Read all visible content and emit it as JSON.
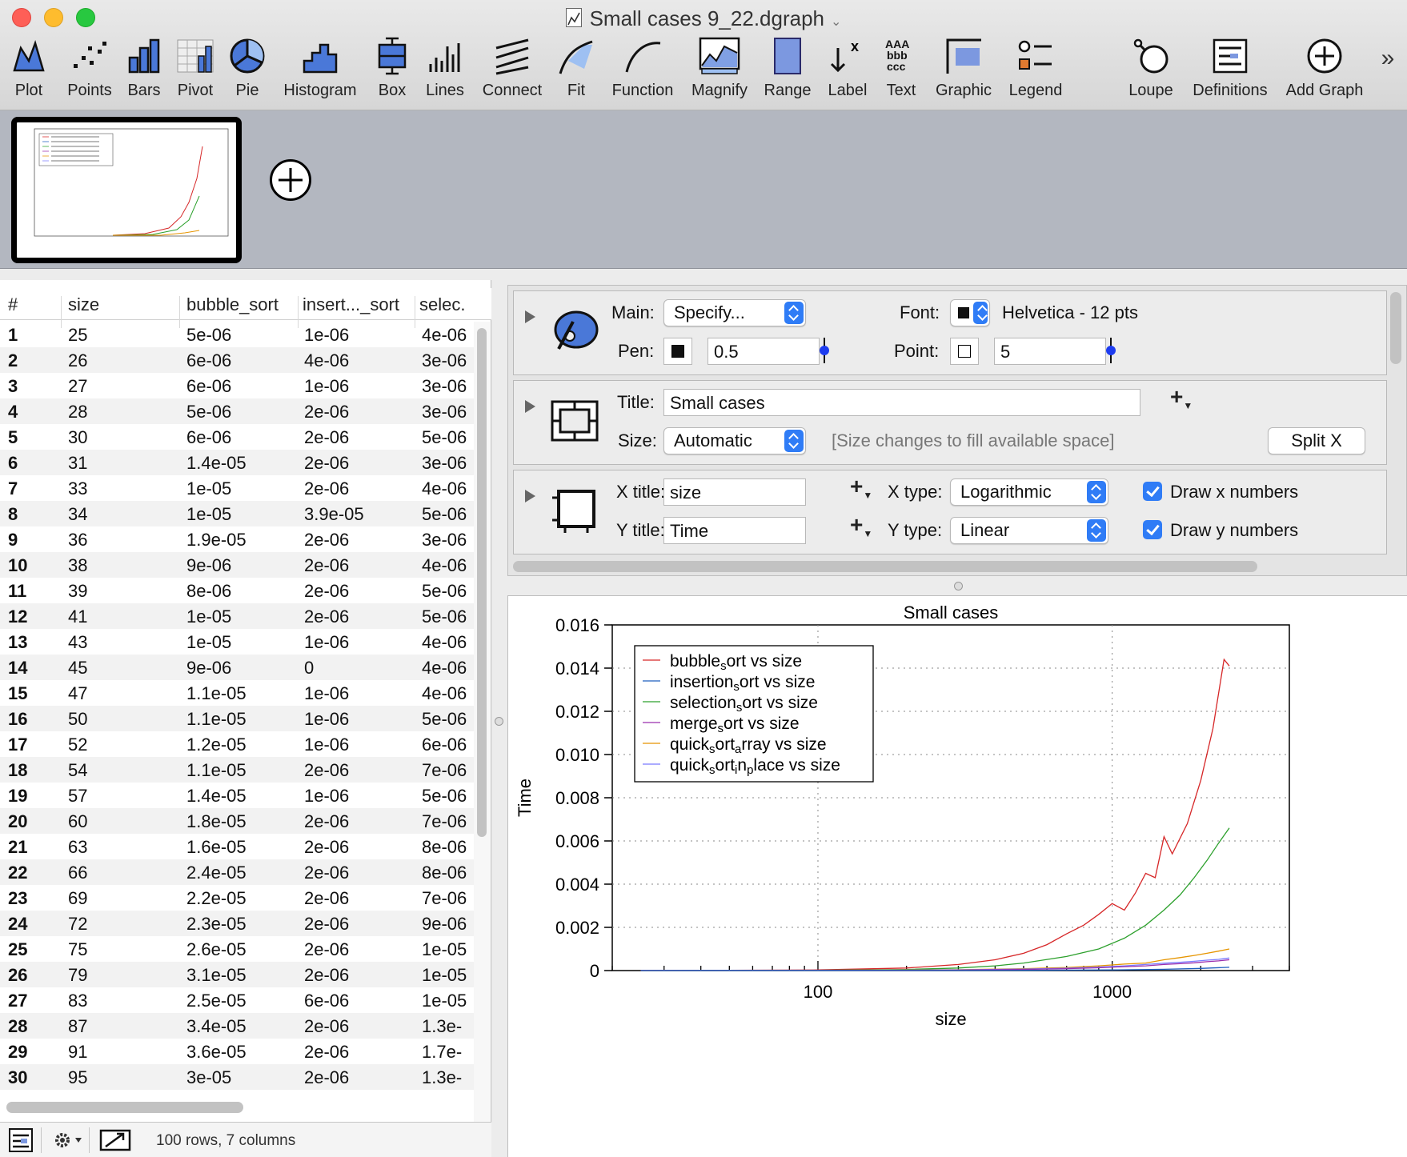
{
  "window": {
    "title": "Small cases 9_22.dgraph"
  },
  "toolbar": {
    "plot": "Plot",
    "points": "Points",
    "bars": "Bars",
    "pivot": "Pivot",
    "pie": "Pie",
    "histogram": "Histogram",
    "box": "Box",
    "lines": "Lines",
    "connect": "Connect",
    "fit": "Fit",
    "function": "Function",
    "magnify": "Magnify",
    "range": "Range",
    "label": "Label",
    "text": "Text",
    "graphic": "Graphic",
    "legend": "Legend",
    "loupe": "Loupe",
    "definitions": "Definitions",
    "add_graph": "Add Graph",
    "overflow": "»"
  },
  "table": {
    "columns": [
      "#",
      "size",
      "bubble_sort",
      "insert..._sort",
      "selec."
    ],
    "rows": [
      [
        "1",
        "25",
        "5e-06",
        "1e-06",
        "4e-06"
      ],
      [
        "2",
        "26",
        "6e-06",
        "4e-06",
        "3e-06"
      ],
      [
        "3",
        "27",
        "6e-06",
        "1e-06",
        "3e-06"
      ],
      [
        "4",
        "28",
        "5e-06",
        "2e-06",
        "3e-06"
      ],
      [
        "5",
        "30",
        "6e-06",
        "2e-06",
        "5e-06"
      ],
      [
        "6",
        "31",
        "1.4e-05",
        "2e-06",
        "3e-06"
      ],
      [
        "7",
        "33",
        "1e-05",
        "2e-06",
        "4e-06"
      ],
      [
        "8",
        "34",
        "1e-05",
        "3.9e-05",
        "5e-06"
      ],
      [
        "9",
        "36",
        "1.9e-05",
        "2e-06",
        "3e-06"
      ],
      [
        "10",
        "38",
        "9e-06",
        "2e-06",
        "4e-06"
      ],
      [
        "11",
        "39",
        "8e-06",
        "2e-06",
        "5e-06"
      ],
      [
        "12",
        "41",
        "1e-05",
        "2e-06",
        "5e-06"
      ],
      [
        "13",
        "43",
        "1e-05",
        "1e-06",
        "4e-06"
      ],
      [
        "14",
        "45",
        "9e-06",
        "0",
        "4e-06"
      ],
      [
        "15",
        "47",
        "1.1e-05",
        "1e-06",
        "4e-06"
      ],
      [
        "16",
        "50",
        "1.1e-05",
        "1e-06",
        "5e-06"
      ],
      [
        "17",
        "52",
        "1.2e-05",
        "1e-06",
        "6e-06"
      ],
      [
        "18",
        "54",
        "1.1e-05",
        "2e-06",
        "7e-06"
      ],
      [
        "19",
        "57",
        "1.4e-05",
        "1e-06",
        "5e-06"
      ],
      [
        "20",
        "60",
        "1.8e-05",
        "2e-06",
        "7e-06"
      ],
      [
        "21",
        "63",
        "1.6e-05",
        "2e-06",
        "8e-06"
      ],
      [
        "22",
        "66",
        "2.4e-05",
        "2e-06",
        "8e-06"
      ],
      [
        "23",
        "69",
        "2.2e-05",
        "2e-06",
        "7e-06"
      ],
      [
        "24",
        "72",
        "2.3e-05",
        "2e-06",
        "9e-06"
      ],
      [
        "25",
        "75",
        "2.6e-05",
        "2e-06",
        "1e-05"
      ],
      [
        "26",
        "79",
        "3.1e-05",
        "2e-06",
        "1e-05"
      ],
      [
        "27",
        "83",
        "2.5e-05",
        "6e-06",
        "1e-05"
      ],
      [
        "28",
        "87",
        "3.4e-05",
        "2e-06",
        "1.3e-"
      ],
      [
        "29",
        "91",
        "3.6e-05",
        "2e-06",
        "1.7e-"
      ],
      [
        "30",
        "95",
        "3e-05",
        "2e-06",
        "1.3e-"
      ]
    ],
    "status": "100 rows, 7 columns"
  },
  "inspector": {
    "main_label": "Main:",
    "main_value": "Specify...",
    "font_label": "Font:",
    "font_value": "Helvetica - 12 pts",
    "pen_label": "Pen:",
    "pen_value": "0.5",
    "point_label": "Point:",
    "point_value": "5",
    "title_label": "Title:",
    "title_value": "Small cases",
    "size_label": "Size:",
    "size_value": "Automatic",
    "size_hint": "[Size changes to fill available space]",
    "split_x": "Split X",
    "xtitle_label": "X title:",
    "xtitle_value": "size",
    "ytitle_label": "Y title:",
    "ytitle_value": "Time",
    "xtype_label": "X type:",
    "xtype_value": "Logarithmic",
    "ytype_label": "Y type:",
    "ytype_value": "Linear",
    "draw_x": "Draw x numbers",
    "draw_y": "Draw y numbers"
  },
  "colors": {
    "bubble": "#d62728",
    "insertion": "#1f5fbf",
    "selection": "#2ca02c",
    "merge": "#9b2fae",
    "quick_array": "#e69500",
    "quick_inplace": "#7b7bff"
  },
  "chart_data": {
    "type": "line",
    "title": "Small cases",
    "xlabel": "size",
    "ylabel": "Time",
    "xscale": "log",
    "xlim": [
      20,
      4000
    ],
    "ylim": [
      0,
      0.016
    ],
    "xticks": [
      "100",
      "1000"
    ],
    "yticks": [
      "0.016",
      "0.014",
      "0.012",
      "0.010",
      "0.008",
      "0.006",
      "0.004",
      "0.002",
      "0"
    ],
    "grid": true,
    "legend_position": "top-left",
    "legend": [
      {
        "pre": "bubble",
        "sub": "s",
        "post": "ort vs size"
      },
      {
        "pre": "insertion",
        "sub": "s",
        "post": "ort vs size"
      },
      {
        "pre": "selection",
        "sub": "s",
        "post": "ort vs size"
      },
      {
        "pre": "merge",
        "sub": "s",
        "post": "ort vs size"
      },
      {
        "pre": "quick",
        "sub": "s",
        "post": "ort",
        "sub2": "a",
        "post2": "rray vs size"
      },
      {
        "pre": "quick",
        "sub": "s",
        "post": "ort",
        "sub2": "i",
        "post2": "n",
        "sub3": "p",
        "post3": "lace vs size"
      }
    ],
    "series": [
      {
        "key": "bubble",
        "x": [
          25,
          50,
          100,
          200,
          300,
          400,
          500,
          600,
          700,
          800,
          900,
          1000,
          1100,
          1200,
          1300,
          1400,
          1500,
          1600,
          1800,
          2000,
          2200,
          2400,
          2500
        ],
        "y": [
          5e-06,
          1.1e-05,
          3e-05,
          0.00012,
          0.00028,
          0.0005,
          0.0008,
          0.0012,
          0.0017,
          0.0021,
          0.0026,
          0.0031,
          0.0028,
          0.0036,
          0.0045,
          0.0043,
          0.0062,
          0.0054,
          0.0068,
          0.0088,
          0.0112,
          0.0144,
          0.0141
        ]
      },
      {
        "key": "selection",
        "x": [
          25,
          50,
          100,
          200,
          300,
          400,
          500,
          700,
          900,
          1100,
          1300,
          1500,
          1700,
          1900,
          2100,
          2300,
          2500
        ],
        "y": [
          4e-06,
          5e-06,
          1e-05,
          5e-05,
          0.00012,
          0.00022,
          0.00035,
          0.00065,
          0.001,
          0.0015,
          0.0021,
          0.0028,
          0.0035,
          0.0043,
          0.0051,
          0.0059,
          0.0066
        ]
      },
      {
        "key": "quick_array",
        "x": [
          25,
          100,
          300,
          500,
          700,
          900,
          1100,
          1300,
          1500,
          1700,
          1900,
          2100,
          2300,
          2500
        ],
        "y": [
          2e-06,
          8e-06,
          4e-05,
          9e-05,
          0.00014,
          0.00022,
          0.0003,
          0.00035,
          0.0005,
          0.0006,
          0.0007,
          0.0008,
          0.0009,
          0.001
        ]
      },
      {
        "key": "quick_inplace",
        "x": [
          25,
          100,
          300,
          500,
          700,
          900,
          1100,
          1300,
          1500,
          1700,
          1900,
          2100,
          2300,
          2500
        ],
        "y": [
          2e-06,
          6e-06,
          3e-05,
          7e-05,
          0.00011,
          0.00016,
          0.00022,
          0.00028,
          0.00034,
          0.00038,
          0.00043,
          0.00048,
          0.00052,
          0.00058
        ]
      },
      {
        "key": "merge",
        "x": [
          25,
          100,
          300,
          500,
          700,
          900,
          1100,
          1300,
          1500,
          1700,
          1900,
          2100,
          2300,
          2500
        ],
        "y": [
          2e-06,
          5e-06,
          2e-05,
          5e-05,
          9e-05,
          0.00013,
          0.00018,
          0.00022,
          0.00028,
          0.00032,
          0.00036,
          0.00041,
          0.00045,
          0.0005
        ]
      },
      {
        "key": "insertion",
        "x": [
          25,
          100,
          300,
          500,
          1000,
          1500,
          2000,
          2500
        ],
        "y": [
          1e-06,
          2e-06,
          5e-06,
          1e-05,
          3e-05,
          6e-05,
          0.0001,
          0.00015
        ]
      }
    ]
  }
}
